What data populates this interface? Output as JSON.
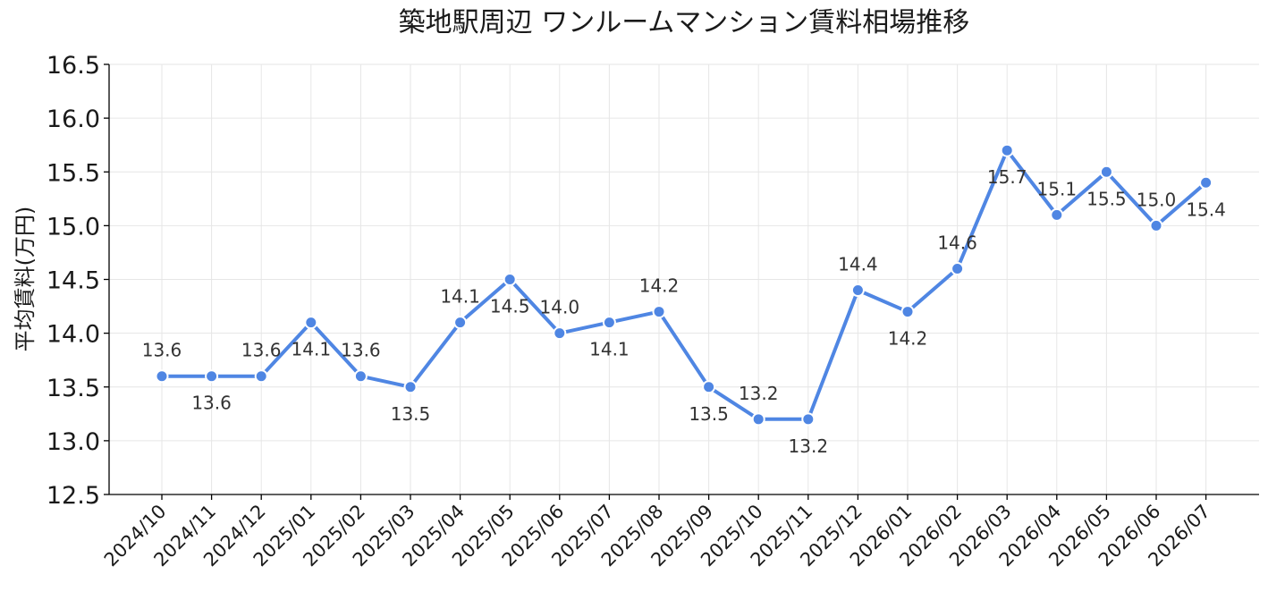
{
  "chart_data": {
    "type": "line",
    "title": "築地駅周辺 ワンルームマンション賃料相場推移",
    "xlabel": "",
    "ylabel": "平均賃料(万円)",
    "ylim": [
      12.5,
      16.5
    ],
    "yticks": [
      "12.5",
      "13.0",
      "13.5",
      "14.0",
      "14.5",
      "15.0",
      "15.5",
      "16.0",
      "16.5"
    ],
    "categories": [
      "2024/10",
      "2024/11",
      "2024/12",
      "2025/01",
      "2025/02",
      "2025/03",
      "2025/04",
      "2025/05",
      "2025/06",
      "2025/07",
      "2025/08",
      "2025/09",
      "2025/10",
      "2025/11",
      "2025/12",
      "2026/01",
      "2026/02",
      "2026/03",
      "2026/04",
      "2026/05",
      "2026/06",
      "2026/07"
    ],
    "values": [
      13.6,
      13.6,
      13.6,
      14.1,
      13.6,
      13.5,
      14.1,
      14.5,
      14.0,
      14.1,
      14.2,
      13.5,
      13.2,
      13.2,
      14.4,
      14.2,
      14.6,
      15.7,
      15.1,
      15.5,
      15.0,
      15.4
    ],
    "data_labels": [
      "13.6",
      "13.6",
      "13.6",
      "14.1",
      "13.6",
      "13.5",
      "14.1",
      "14.5",
      "14.0",
      "14.1",
      "14.2",
      "13.5",
      "13.2",
      "13.2",
      "14.4",
      "14.2",
      "14.6",
      "15.7",
      "15.1",
      "15.5",
      "15.0",
      "15.4"
    ],
    "label_position": [
      "above",
      "below",
      "above",
      "below",
      "above",
      "below",
      "above",
      "below",
      "above",
      "below",
      "above",
      "below",
      "above",
      "below",
      "above",
      "below",
      "above",
      "below",
      "above",
      "below",
      "above",
      "below"
    ],
    "grid": true,
    "line_color": "#4f86e3",
    "marker_fill": "#4f86e3",
    "marker_edge": "#ffffff"
  }
}
